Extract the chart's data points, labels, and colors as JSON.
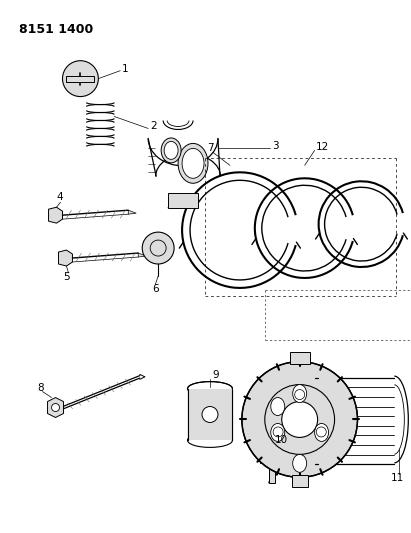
{
  "title_code": "8151 1400",
  "bg": "#ffffff",
  "lc": "#000000",
  "gray": "#aaaaaa",
  "lgray": "#dddddd",
  "dgray": "#666666",
  "title_fontsize": 9,
  "label_fontsize": 7.5,
  "fig_width": 4.11,
  "fig_height": 5.33,
  "dpi": 100
}
